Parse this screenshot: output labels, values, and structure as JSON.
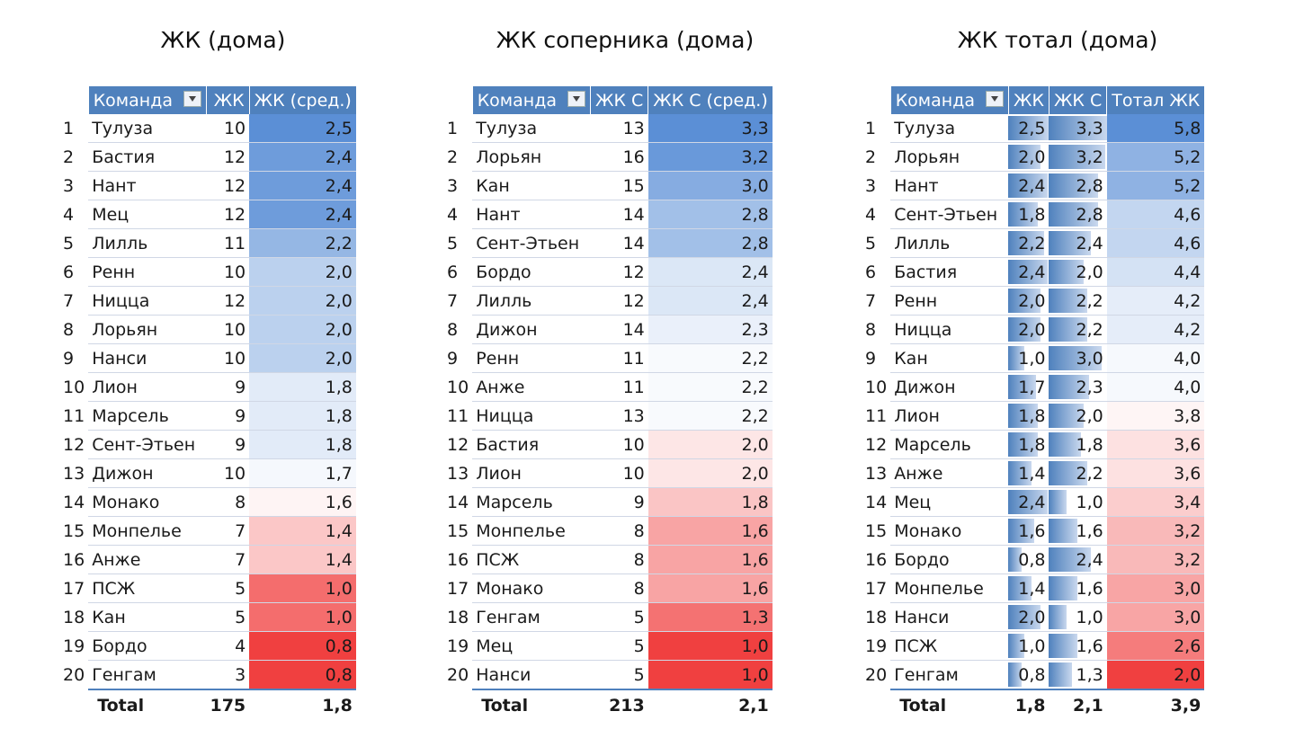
{
  "panel1": {
    "title": "ЖК (дома)",
    "headers": [
      "Команда",
      "ЖК",
      "ЖК (сред.)"
    ],
    "rows": [
      {
        "rank": "1",
        "team": "Тулуза",
        "v1": "10",
        "avg": "2,5"
      },
      {
        "rank": "2",
        "team": "Бастия",
        "v1": "12",
        "avg": "2,4"
      },
      {
        "rank": "3",
        "team": "Нант",
        "v1": "12",
        "avg": "2,4"
      },
      {
        "rank": "4",
        "team": "Мец",
        "v1": "12",
        "avg": "2,4"
      },
      {
        "rank": "5",
        "team": "Лилль",
        "v1": "11",
        "avg": "2,2"
      },
      {
        "rank": "6",
        "team": "Ренн",
        "v1": "10",
        "avg": "2,0"
      },
      {
        "rank": "7",
        "team": "Ницца",
        "v1": "12",
        "avg": "2,0"
      },
      {
        "rank": "8",
        "team": "Лорьян",
        "v1": "10",
        "avg": "2,0"
      },
      {
        "rank": "9",
        "team": "Нанси",
        "v1": "10",
        "avg": "2,0"
      },
      {
        "rank": "10",
        "team": "Лион",
        "v1": "9",
        "avg": "1,8"
      },
      {
        "rank": "11",
        "team": "Марсель",
        "v1": "9",
        "avg": "1,8"
      },
      {
        "rank": "12",
        "team": "Сент-Этьен",
        "v1": "9",
        "avg": "1,8"
      },
      {
        "rank": "13",
        "team": "Дижон",
        "v1": "10",
        "avg": "1,7"
      },
      {
        "rank": "14",
        "team": "Монако",
        "v1": "8",
        "avg": "1,6"
      },
      {
        "rank": "15",
        "team": "Монпелье",
        "v1": "7",
        "avg": "1,4"
      },
      {
        "rank": "16",
        "team": "Анже",
        "v1": "7",
        "avg": "1,4"
      },
      {
        "rank": "17",
        "team": "ПСЖ",
        "v1": "5",
        "avg": "1,0"
      },
      {
        "rank": "18",
        "team": "Кан",
        "v1": "5",
        "avg": "1,0"
      },
      {
        "rank": "19",
        "team": "Бордо",
        "v1": "4",
        "avg": "0,8"
      },
      {
        "rank": "20",
        "team": "Генгам",
        "v1": "3",
        "avg": "0,8"
      }
    ],
    "total": {
      "label": "Total",
      "v1": "175",
      "avg": "1,8"
    }
  },
  "panel2": {
    "title": "ЖК соперника (дома)",
    "headers": [
      "Команда",
      "ЖК С",
      "ЖК С (сред.)"
    ],
    "rows": [
      {
        "rank": "1",
        "team": "Тулуза",
        "v1": "13",
        "avg": "3,3"
      },
      {
        "rank": "2",
        "team": "Лорьян",
        "v1": "16",
        "avg": "3,2"
      },
      {
        "rank": "3",
        "team": "Кан",
        "v1": "15",
        "avg": "3,0"
      },
      {
        "rank": "4",
        "team": "Нант",
        "v1": "14",
        "avg": "2,8"
      },
      {
        "rank": "5",
        "team": "Сент-Этьен",
        "v1": "14",
        "avg": "2,8"
      },
      {
        "rank": "6",
        "team": "Бордо",
        "v1": "12",
        "avg": "2,4"
      },
      {
        "rank": "7",
        "team": "Лилль",
        "v1": "12",
        "avg": "2,4"
      },
      {
        "rank": "8",
        "team": "Дижон",
        "v1": "14",
        "avg": "2,3"
      },
      {
        "rank": "9",
        "team": "Ренн",
        "v1": "11",
        "avg": "2,2"
      },
      {
        "rank": "10",
        "team": "Анже",
        "v1": "11",
        "avg": "2,2"
      },
      {
        "rank": "11",
        "team": "Ницца",
        "v1": "13",
        "avg": "2,2"
      },
      {
        "rank": "12",
        "team": "Бастия",
        "v1": "10",
        "avg": "2,0"
      },
      {
        "rank": "13",
        "team": "Лион",
        "v1": "10",
        "avg": "2,0"
      },
      {
        "rank": "14",
        "team": "Марсель",
        "v1": "9",
        "avg": "1,8"
      },
      {
        "rank": "15",
        "team": "Монпелье",
        "v1": "8",
        "avg": "1,6"
      },
      {
        "rank": "16",
        "team": "ПСЖ",
        "v1": "8",
        "avg": "1,6"
      },
      {
        "rank": "17",
        "team": "Монако",
        "v1": "8",
        "avg": "1,6"
      },
      {
        "rank": "18",
        "team": "Генгам",
        "v1": "5",
        "avg": "1,3"
      },
      {
        "rank": "19",
        "team": "Мец",
        "v1": "5",
        "avg": "1,0"
      },
      {
        "rank": "20",
        "team": "Нанси",
        "v1": "5",
        "avg": "1,0"
      }
    ],
    "total": {
      "label": "Total",
      "v1": "213",
      "avg": "2,1"
    }
  },
  "panel3": {
    "title": "ЖК тотал (дома)",
    "headers": [
      "Команда",
      "ЖК",
      "ЖК С",
      "Тотал ЖК"
    ],
    "rows": [
      {
        "rank": "1",
        "team": "Тулуза",
        "a": "2,5",
        "b": "3,3",
        "tot": "5,8"
      },
      {
        "rank": "2",
        "team": "Лорьян",
        "a": "2,0",
        "b": "3,2",
        "tot": "5,2"
      },
      {
        "rank": "3",
        "team": "Нант",
        "a": "2,4",
        "b": "2,8",
        "tot": "5,2"
      },
      {
        "rank": "4",
        "team": "Сент-Этьен",
        "a": "1,8",
        "b": "2,8",
        "tot": "4,6"
      },
      {
        "rank": "5",
        "team": "Лилль",
        "a": "2,2",
        "b": "2,4",
        "tot": "4,6"
      },
      {
        "rank": "6",
        "team": "Бастия",
        "a": "2,4",
        "b": "2,0",
        "tot": "4,4"
      },
      {
        "rank": "7",
        "team": "Ренн",
        "a": "2,0",
        "b": "2,2",
        "tot": "4,2"
      },
      {
        "rank": "8",
        "team": "Ницца",
        "a": "2,0",
        "b": "2,2",
        "tot": "4,2"
      },
      {
        "rank": "9",
        "team": "Кан",
        "a": "1,0",
        "b": "3,0",
        "tot": "4,0"
      },
      {
        "rank": "10",
        "team": "Дижон",
        "a": "1,7",
        "b": "2,3",
        "tot": "4,0"
      },
      {
        "rank": "11",
        "team": "Лион",
        "a": "1,8",
        "b": "2,0",
        "tot": "3,8"
      },
      {
        "rank": "12",
        "team": "Марсель",
        "a": "1,8",
        "b": "1,8",
        "tot": "3,6"
      },
      {
        "rank": "13",
        "team": "Анже",
        "a": "1,4",
        "b": "2,2",
        "tot": "3,6"
      },
      {
        "rank": "14",
        "team": "Мец",
        "a": "2,4",
        "b": "1,0",
        "tot": "3,4"
      },
      {
        "rank": "15",
        "team": "Монако",
        "a": "1,6",
        "b": "1,6",
        "tot": "3,2"
      },
      {
        "rank": "16",
        "team": "Бордо",
        "a": "0,8",
        "b": "2,4",
        "tot": "3,2"
      },
      {
        "rank": "17",
        "team": "Монпелье",
        "a": "1,4",
        "b": "1,6",
        "tot": "3,0"
      },
      {
        "rank": "18",
        "team": "Нанси",
        "a": "2,0",
        "b": "1,0",
        "tot": "3,0"
      },
      {
        "rank": "19",
        "team": "ПСЖ",
        "a": "1,0",
        "b": "1,6",
        "tot": "2,6"
      },
      {
        "rank": "20",
        "team": "Генгам",
        "a": "0,8",
        "b": "1,3",
        "tot": "2,0"
      }
    ],
    "total": {
      "label": "Total",
      "a": "1,8",
      "b": "2,1",
      "tot": "3,9"
    }
  },
  "colors": {
    "header": "#4f81bd",
    "high": "#5b8fd6",
    "low": "#f04040",
    "bar": "#4f81bd"
  },
  "filter_icon": "filter-dropdown-icon"
}
